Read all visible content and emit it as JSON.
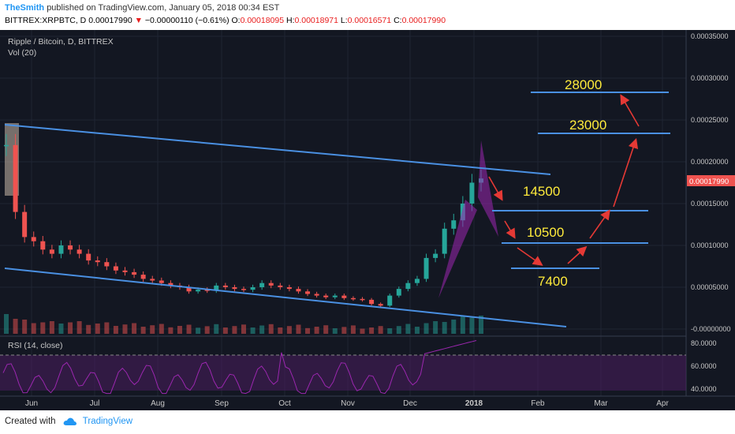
{
  "header": {
    "author": "TheSmith",
    "published": "published on TradingView.com, January 05, 2018 00:34 EST",
    "symbol": "BITTREX:XRPBTC, D",
    "last": "0.00017990",
    "change_arrow": "▼",
    "change": "−0.00000110 (−0.61%)",
    "o_label": "O:",
    "o_value": "0.00018095",
    "h_label": "H:",
    "h_value": "0.00018971",
    "l_label": "L:",
    "l_value": "0.00016571",
    "c_label": "C:",
    "c_value": "0.00017990"
  },
  "chart_data": {
    "type": "line",
    "title": "Ripple / Bitcoin, D, BITTREX",
    "subtitle": "Vol (20)",
    "rsi_label": "RSI (14, close)",
    "x_ticks": [
      "Jun",
      "Jul",
      "Aug",
      "Sep",
      "Oct",
      "Nov",
      "Dec",
      "2018",
      "Feb",
      "Mar",
      "Apr"
    ],
    "y_ticks": [
      "0.00035000",
      "0.00030000",
      "0.00025000",
      "0.00020000",
      "0.00015000",
      "0.00010000",
      "0.00005000",
      "-0.00000000"
    ],
    "ylim": [
      0,
      0.00035
    ],
    "price_tag": "0.00017990",
    "rsi_ticks": [
      "80.0000",
      "60.0000",
      "40.0000"
    ],
    "rsi_ylim": [
      35,
      85
    ],
    "series": [
      {
        "values": [
          0.00022,
          0.00014,
          0.00011,
          0.000105,
          9.5e-05,
          9e-05,
          0.0001,
          9.5e-05,
          9e-05,
          8.2e-05,
          8e-05,
          7.5e-05,
          7e-05,
          6.8e-05,
          6.5e-05,
          6e-05,
          5.8e-05,
          5.5e-05,
          5.2e-05,
          5e-05,
          4.5e-05,
          4.7e-05,
          4.6e-05,
          5.2e-05,
          5e-05,
          4.8e-05,
          4.7e-05,
          5e-05,
          5.5e-05,
          5.2e-05,
          5e-05,
          4.8e-05,
          4.5e-05,
          4.2e-05,
          4e-05,
          3.8e-05,
          4e-05,
          3.7e-05,
          3.6e-05,
          3.5e-05,
          3e-05,
          2.8e-05,
          4e-05,
          4.8e-05,
          5.5e-05,
          6e-05,
          8.5e-05,
          9e-05,
          0.00012,
          0.00013,
          0.00015,
          0.000175,
          0.00018
        ]
      }
    ],
    "annotations": [
      "28000",
      "23000",
      "14500",
      "10500",
      "7400"
    ],
    "colors": {
      "background": "#131722",
      "trendline": "#4a90e2",
      "label": "#ffeb3b",
      "arrow": "#e53935",
      "pattern": "#9c27b0",
      "bull": "#26a69a",
      "bear": "#ef5350"
    }
  },
  "footer": {
    "created_with": "Created with",
    "brand": "TradingView"
  }
}
